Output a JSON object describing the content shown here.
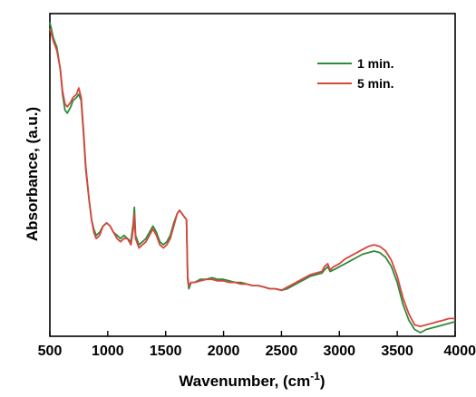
{
  "chart_data": {
    "type": "line",
    "title": "",
    "xlabel": "Wavenumber, (cm",
    "xlabel_sup": "-1",
    "xlabel_close": ")",
    "ylabel": "Absorbance, (a.u.)",
    "xlim": [
      500,
      4000
    ],
    "ylim": [
      0,
      1
    ],
    "xticks": [
      500,
      1000,
      1500,
      2000,
      2500,
      3000,
      3500,
      4000
    ],
    "xtick_labels": [
      "500",
      "1000",
      "1500",
      "2000",
      "2500",
      "3000",
      "3500",
      "4000"
    ],
    "y_tick_labels_shown": false,
    "legend_position": "top-right",
    "series": [
      {
        "name": "1 min.",
        "color": "#2e8b3a",
        "points": [
          [
            500,
            0.99
          ],
          [
            530,
            0.94
          ],
          [
            560,
            0.91
          ],
          [
            590,
            0.84
          ],
          [
            610,
            0.76
          ],
          [
            630,
            0.71
          ],
          [
            650,
            0.7
          ],
          [
            680,
            0.72
          ],
          [
            700,
            0.74
          ],
          [
            730,
            0.75
          ],
          [
            750,
            0.76
          ],
          [
            770,
            0.74
          ],
          [
            790,
            0.64
          ],
          [
            810,
            0.52
          ],
          [
            840,
            0.42
          ],
          [
            860,
            0.36
          ],
          [
            880,
            0.33
          ],
          [
            900,
            0.31
          ],
          [
            930,
            0.32
          ],
          [
            960,
            0.34
          ],
          [
            990,
            0.35
          ],
          [
            1020,
            0.34
          ],
          [
            1050,
            0.32
          ],
          [
            1080,
            0.31
          ],
          [
            1110,
            0.3
          ],
          [
            1140,
            0.31
          ],
          [
            1170,
            0.3
          ],
          [
            1200,
            0.29
          ],
          [
            1220,
            0.35
          ],
          [
            1230,
            0.4
          ],
          [
            1240,
            0.31
          ],
          [
            1270,
            0.28
          ],
          [
            1300,
            0.29
          ],
          [
            1330,
            0.3
          ],
          [
            1360,
            0.32
          ],
          [
            1390,
            0.34
          ],
          [
            1420,
            0.32
          ],
          [
            1450,
            0.29
          ],
          [
            1480,
            0.28
          ],
          [
            1510,
            0.29
          ],
          [
            1540,
            0.31
          ],
          [
            1570,
            0.35
          ],
          [
            1600,
            0.38
          ],
          [
            1620,
            0.39
          ],
          [
            1640,
            0.38
          ],
          [
            1660,
            0.37
          ],
          [
            1680,
            0.36
          ],
          [
            1690,
            0.17
          ],
          [
            1700,
            0.14
          ],
          [
            1720,
            0.16
          ],
          [
            1750,
            0.16
          ],
          [
            1800,
            0.17
          ],
          [
            1850,
            0.17
          ],
          [
            1900,
            0.175
          ],
          [
            1950,
            0.17
          ],
          [
            2000,
            0.17
          ],
          [
            2050,
            0.165
          ],
          [
            2100,
            0.16
          ],
          [
            2150,
            0.16
          ],
          [
            2200,
            0.155
          ],
          [
            2250,
            0.15
          ],
          [
            2300,
            0.15
          ],
          [
            2350,
            0.145
          ],
          [
            2400,
            0.14
          ],
          [
            2450,
            0.14
          ],
          [
            2500,
            0.135
          ],
          [
            2550,
            0.14
          ],
          [
            2600,
            0.15
          ],
          [
            2650,
            0.16
          ],
          [
            2700,
            0.17
          ],
          [
            2750,
            0.18
          ],
          [
            2800,
            0.185
          ],
          [
            2850,
            0.19
          ],
          [
            2870,
            0.2
          ],
          [
            2900,
            0.21
          ],
          [
            2920,
            0.195
          ],
          [
            2950,
            0.2
          ],
          [
            3000,
            0.21
          ],
          [
            3050,
            0.22
          ],
          [
            3100,
            0.23
          ],
          [
            3150,
            0.24
          ],
          [
            3200,
            0.25
          ],
          [
            3250,
            0.255
          ],
          [
            3300,
            0.26
          ],
          [
            3350,
            0.255
          ],
          [
            3400,
            0.24
          ],
          [
            3450,
            0.21
          ],
          [
            3500,
            0.16
          ],
          [
            3550,
            0.09
          ],
          [
            3600,
            0.04
          ],
          [
            3650,
            0.01
          ],
          [
            3700,
            0.0
          ],
          [
            3750,
            0.01
          ],
          [
            3800,
            0.015
          ],
          [
            3850,
            0.02
          ],
          [
            3900,
            0.025
          ],
          [
            3950,
            0.03
          ],
          [
            4000,
            0.035
          ]
        ]
      },
      {
        "name": "5 min.",
        "color": "#d9453e",
        "points": [
          [
            500,
            0.97
          ],
          [
            530,
            0.93
          ],
          [
            560,
            0.9
          ],
          [
            590,
            0.84
          ],
          [
            610,
            0.77
          ],
          [
            630,
            0.73
          ],
          [
            650,
            0.72
          ],
          [
            680,
            0.735
          ],
          [
            700,
            0.75
          ],
          [
            730,
            0.76
          ],
          [
            750,
            0.78
          ],
          [
            770,
            0.75
          ],
          [
            790,
            0.65
          ],
          [
            810,
            0.53
          ],
          [
            840,
            0.42
          ],
          [
            860,
            0.36
          ],
          [
            880,
            0.32
          ],
          [
            900,
            0.3
          ],
          [
            930,
            0.31
          ],
          [
            960,
            0.34
          ],
          [
            990,
            0.35
          ],
          [
            1020,
            0.34
          ],
          [
            1050,
            0.32
          ],
          [
            1080,
            0.3
          ],
          [
            1110,
            0.29
          ],
          [
            1140,
            0.3
          ],
          [
            1170,
            0.3
          ],
          [
            1200,
            0.28
          ],
          [
            1220,
            0.33
          ],
          [
            1230,
            0.38
          ],
          [
            1240,
            0.3
          ],
          [
            1270,
            0.27
          ],
          [
            1300,
            0.28
          ],
          [
            1330,
            0.29
          ],
          [
            1360,
            0.31
          ],
          [
            1390,
            0.33
          ],
          [
            1420,
            0.31
          ],
          [
            1450,
            0.28
          ],
          [
            1480,
            0.27
          ],
          [
            1510,
            0.28
          ],
          [
            1540,
            0.3
          ],
          [
            1570,
            0.34
          ],
          [
            1600,
            0.38
          ],
          [
            1620,
            0.39
          ],
          [
            1640,
            0.38
          ],
          [
            1660,
            0.37
          ],
          [
            1680,
            0.36
          ],
          [
            1690,
            0.18
          ],
          [
            1700,
            0.15
          ],
          [
            1720,
            0.16
          ],
          [
            1750,
            0.16
          ],
          [
            1800,
            0.165
          ],
          [
            1850,
            0.17
          ],
          [
            1900,
            0.17
          ],
          [
            1950,
            0.165
          ],
          [
            2000,
            0.165
          ],
          [
            2050,
            0.16
          ],
          [
            2100,
            0.16
          ],
          [
            2150,
            0.155
          ],
          [
            2200,
            0.155
          ],
          [
            2250,
            0.15
          ],
          [
            2300,
            0.15
          ],
          [
            2350,
            0.145
          ],
          [
            2400,
            0.14
          ],
          [
            2450,
            0.14
          ],
          [
            2500,
            0.135
          ],
          [
            2550,
            0.145
          ],
          [
            2600,
            0.155
          ],
          [
            2650,
            0.165
          ],
          [
            2700,
            0.175
          ],
          [
            2750,
            0.185
          ],
          [
            2800,
            0.19
          ],
          [
            2850,
            0.195
          ],
          [
            2870,
            0.21
          ],
          [
            2900,
            0.22
          ],
          [
            2920,
            0.2
          ],
          [
            2950,
            0.21
          ],
          [
            3000,
            0.22
          ],
          [
            3050,
            0.235
          ],
          [
            3100,
            0.245
          ],
          [
            3150,
            0.255
          ],
          [
            3200,
            0.265
          ],
          [
            3250,
            0.275
          ],
          [
            3300,
            0.28
          ],
          [
            3350,
            0.275
          ],
          [
            3400,
            0.26
          ],
          [
            3450,
            0.23
          ],
          [
            3500,
            0.18
          ],
          [
            3550,
            0.11
          ],
          [
            3600,
            0.06
          ],
          [
            3650,
            0.025
          ],
          [
            3700,
            0.02
          ],
          [
            3750,
            0.025
          ],
          [
            3800,
            0.03
          ],
          [
            3850,
            0.035
          ],
          [
            3900,
            0.04
          ],
          [
            3950,
            0.045
          ],
          [
            4000,
            0.045
          ]
        ]
      }
    ]
  }
}
